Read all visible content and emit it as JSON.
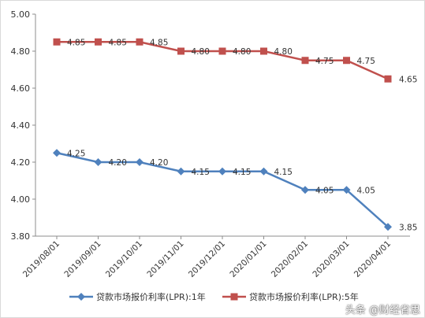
{
  "chart_data": {
    "type": "line",
    "x": [
      "2019/08/01",
      "2019/09/01",
      "2019/10/01",
      "2019/11/01",
      "2019/12/01",
      "2020/01/01",
      "2020/02/01",
      "2020/03/01",
      "2020/04/01"
    ],
    "ylim": [
      3.8,
      5.0
    ],
    "yticks": [
      "3.80",
      "4.00",
      "4.20",
      "4.40",
      "4.60",
      "4.80",
      "5.00"
    ],
    "grid": false,
    "legend_position": "bottom",
    "series": [
      {
        "name": "贷款市场报价利率(LPR):1年",
        "values": [
          4.25,
          4.2,
          4.2,
          4.15,
          4.15,
          4.15,
          4.05,
          4.05,
          3.85
        ],
        "labels": [
          "4.25",
          "4.20",
          "4.20",
          "4.15",
          "4.15",
          "4.15",
          "4.05",
          "4.05",
          "3.85"
        ],
        "color": "#4f81bd",
        "marker": "diamond"
      },
      {
        "name": "贷款市场报价利率(LPR):5年",
        "values": [
          4.85,
          4.85,
          4.85,
          4.8,
          4.8,
          4.8,
          4.75,
          4.75,
          4.65
        ],
        "labels": [
          "4.85",
          "4.85",
          "4.85",
          "4.80",
          "4.80",
          "4.80",
          "4.75",
          "4.75",
          "4.65"
        ],
        "color": "#c0504d",
        "marker": "square"
      }
    ]
  },
  "watermark": "头条 @财经省思"
}
